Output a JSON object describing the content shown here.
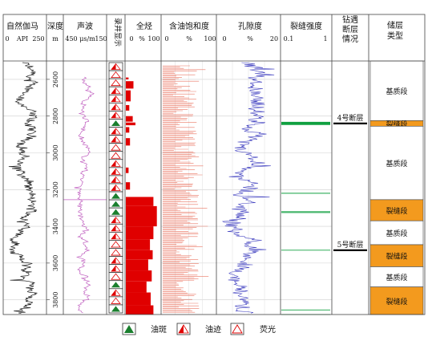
{
  "columns": {
    "gamma": {
      "title": "自然伽马",
      "scale": [
        "0",
        "API",
        "250"
      ]
    },
    "depth": {
      "title": "深度",
      "unit": "m"
    },
    "sonic": {
      "title": "声波",
      "scale": [
        "450",
        "μs/m",
        "150"
      ]
    },
    "shows": {
      "title": "录井显示"
    },
    "total_gas": {
      "title": "全烃",
      "scale": [
        "0",
        "%",
        "100"
      ]
    },
    "oil_sat": {
      "title": "含油饱和度",
      "scale": [
        "0",
        "%",
        "100"
      ]
    },
    "porosity": {
      "title": "孔隙度",
      "scale": [
        "0",
        "%",
        "20"
      ]
    },
    "fracture": {
      "title": "裂缝强度",
      "scale": [
        "0.1",
        "1"
      ]
    },
    "faults": {
      "title": [
        "钻遇",
        "断层",
        "情况"
      ]
    },
    "reservoir": {
      "title": [
        "储层",
        "类型"
      ]
    }
  },
  "depth_ticks": [
    "2600",
    "2800",
    "3000",
    "3200",
    "3400",
    "3600",
    "3800"
  ],
  "faults": [
    {
      "label": "4号断层",
      "depth": 2840
    },
    {
      "label": "5号断层",
      "depth": 3530
    }
  ],
  "reservoir_intervals": [
    {
      "label": "基质段",
      "top": 2500,
      "bottom": 2825,
      "type": "matrix"
    },
    {
      "label": "裂缝段",
      "top": 2825,
      "bottom": 2855,
      "type": "fracture"
    },
    {
      "label": "基质段",
      "top": 2855,
      "bottom": 3255,
      "type": "matrix"
    },
    {
      "label": "裂缝段",
      "top": 3255,
      "bottom": 3370,
      "type": "fracture"
    },
    {
      "label": "基质段",
      "top": 3370,
      "bottom": 3500,
      "type": "matrix"
    },
    {
      "label": "裂缝段",
      "top": 3500,
      "bottom": 3620,
      "type": "fracture"
    },
    {
      "label": "基质段",
      "top": 3620,
      "bottom": 3730,
      "type": "matrix"
    },
    {
      "label": "裂缝段",
      "top": 3730,
      "bottom": 3880,
      "type": "fracture"
    }
  ],
  "fracture_lines": [
    2835,
    2840,
    2845,
    3220,
    3320,
    3325,
    3530,
    3855,
    3880
  ],
  "total_gas_blocks": [
    {
      "top": 2590,
      "bottom": 2600,
      "value": 8
    },
    {
      "top": 2610,
      "bottom": 2650,
      "value": 22
    },
    {
      "top": 2660,
      "bottom": 2720,
      "value": 14
    },
    {
      "top": 2740,
      "bottom": 2770,
      "value": 10
    },
    {
      "top": 2800,
      "bottom": 2830,
      "value": 20
    },
    {
      "top": 2835,
      "bottom": 2850,
      "value": 28
    },
    {
      "top": 2860,
      "bottom": 2890,
      "value": 10
    },
    {
      "top": 2920,
      "bottom": 2960,
      "value": 12
    },
    {
      "top": 3080,
      "bottom": 3110,
      "value": 8
    },
    {
      "top": 3160,
      "bottom": 3200,
      "value": 12
    },
    {
      "top": 3240,
      "bottom": 3290,
      "value": 80
    },
    {
      "top": 3290,
      "bottom": 3400,
      "value": 90
    },
    {
      "top": 3400,
      "bottom": 3470,
      "value": 80
    },
    {
      "top": 3470,
      "bottom": 3530,
      "value": 70
    },
    {
      "top": 3530,
      "bottom": 3580,
      "value": 78
    },
    {
      "top": 3580,
      "bottom": 3640,
      "value": 65
    },
    {
      "top": 3640,
      "bottom": 3700,
      "value": 75
    },
    {
      "top": 3700,
      "bottom": 3760,
      "value": 60
    },
    {
      "top": 3760,
      "bottom": 3830,
      "value": 72
    },
    {
      "top": 3830,
      "bottom": 3880,
      "value": 80
    }
  ],
  "shows": [
    "oil_trace",
    "fluor",
    "fluor",
    "oil_trace",
    "oil_trace",
    "oil_trace",
    "oil_trace",
    "oil_spot",
    "oil_trace",
    "oil_trace",
    "fluor",
    "fluor",
    "oil_trace",
    "oil_trace",
    "oil_trace",
    "oil_trace",
    "oil_spot",
    "oil_spot",
    "oil_spot",
    "oil_trace",
    "oil_trace",
    "oil_trace",
    "fluor",
    "fluor",
    "oil_trace",
    "oil_trace",
    "fluor",
    "oil_spot",
    "oil_trace",
    "fluor",
    "oil_spot"
  ],
  "legend": [
    {
      "symbol": "oil_spot",
      "label": "油斑"
    },
    {
      "symbol": "oil_trace",
      "label": "油迹"
    },
    {
      "symbol": "fluor",
      "label": "荧光"
    }
  ],
  "colors": {
    "gamma": "#222222",
    "sonic": "#c060c0",
    "gas": "#e00000",
    "oil_sat": "#e8604a",
    "porosity": "#4040c0",
    "fracture": "#10a040",
    "fracture_box": "#f39a1e",
    "grid": "#9a9a9a"
  }
}
